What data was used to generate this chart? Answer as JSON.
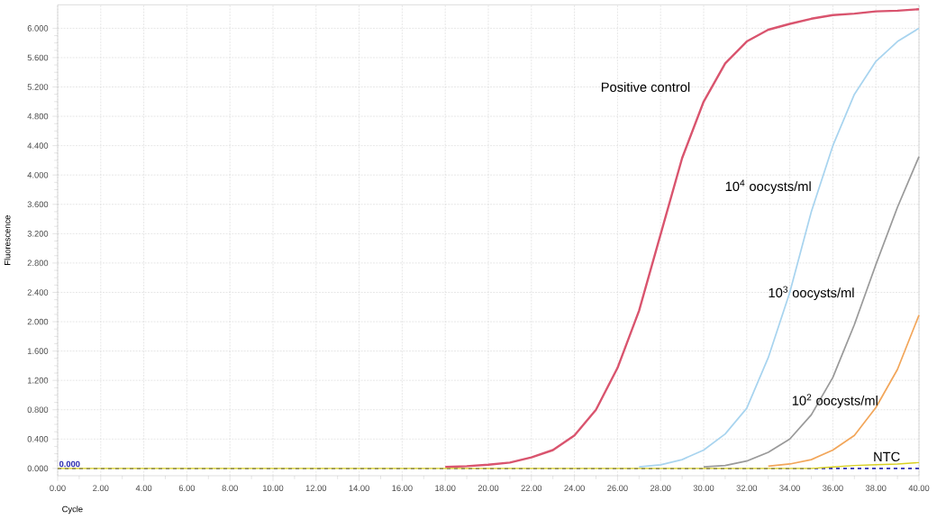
{
  "chart_data": {
    "type": "line",
    "xlabel": "Cycle",
    "ylabel": "Fluorescence",
    "x": [
      0,
      1,
      2,
      3,
      4,
      5,
      6,
      7,
      8,
      9,
      10,
      11,
      12,
      13,
      14,
      15,
      16,
      17,
      18,
      19,
      20,
      21,
      22,
      23,
      24,
      25,
      26,
      27,
      28,
      29,
      30,
      31,
      32,
      33,
      34,
      35,
      36,
      37,
      38,
      39,
      40
    ],
    "series": [
      {
        "name": "Positive control",
        "color": "#d9546e",
        "values": [
          null,
          null,
          null,
          null,
          null,
          null,
          null,
          null,
          null,
          null,
          null,
          null,
          null,
          null,
          null,
          null,
          null,
          null,
          0.02,
          0.03,
          0.05,
          0.08,
          0.15,
          0.25,
          0.45,
          0.8,
          1.37,
          2.15,
          3.19,
          4.23,
          5.0,
          5.52,
          5.82,
          5.98,
          6.06,
          6.13,
          6.18,
          6.2,
          6.23,
          6.24,
          6.26
        ]
      },
      {
        "name": "10$^{4}$ oocysts/ml",
        "color": "#a8d4ef",
        "values": [
          null,
          null,
          null,
          null,
          null,
          null,
          null,
          null,
          null,
          null,
          null,
          null,
          null,
          null,
          null,
          null,
          null,
          null,
          null,
          null,
          null,
          null,
          null,
          null,
          null,
          null,
          null,
          0.02,
          0.05,
          0.12,
          0.25,
          0.47,
          0.82,
          1.51,
          2.4,
          3.5,
          4.4,
          5.1,
          5.55,
          5.82,
          6.0
        ]
      },
      {
        "name": "10$^{3}$ oocysts/ml",
        "color": "#9a9a9a",
        "values": [
          null,
          null,
          null,
          null,
          null,
          null,
          null,
          null,
          null,
          null,
          null,
          null,
          null,
          null,
          null,
          null,
          null,
          null,
          null,
          null,
          null,
          null,
          null,
          null,
          null,
          null,
          null,
          null,
          null,
          null,
          0.02,
          0.04,
          0.1,
          0.22,
          0.4,
          0.73,
          1.24,
          1.96,
          2.78,
          3.56,
          4.25
        ]
      },
      {
        "name": "10$^{2}$ oocysts/ml",
        "color": "#f2a65a",
        "values": [
          null,
          null,
          null,
          null,
          null,
          null,
          null,
          null,
          null,
          null,
          null,
          null,
          null,
          null,
          null,
          null,
          null,
          null,
          null,
          null,
          null,
          null,
          null,
          null,
          null,
          null,
          null,
          null,
          null,
          null,
          null,
          null,
          null,
          0.03,
          0.06,
          0.12,
          0.25,
          0.45,
          0.83,
          1.35,
          2.09
        ]
      },
      {
        "name": "NTC",
        "color": "#d8d020",
        "values": [
          0,
          0,
          0,
          0,
          0,
          0,
          0,
          0,
          0,
          0,
          0,
          0,
          0,
          0,
          0,
          0,
          0,
          0,
          0,
          0,
          0,
          0,
          0,
          0,
          0,
          0,
          0,
          0,
          0,
          0,
          0,
          0,
          0,
          0,
          0,
          0,
          0.02,
          0.04,
          0.05,
          0.06,
          0.08
        ]
      }
    ],
    "xlim": [
      0,
      40
    ],
    "ylim": [
      -0.1,
      6.32
    ],
    "xticks": [
      {
        "value": 0,
        "label": "0.00"
      },
      {
        "value": 2,
        "label": "2.00"
      },
      {
        "value": 4,
        "label": "4.00"
      },
      {
        "value": 6,
        "label": "6.00"
      },
      {
        "value": 8,
        "label": "8.00"
      },
      {
        "value": 10,
        "label": "10.00"
      },
      {
        "value": 12,
        "label": "12.00"
      },
      {
        "value": 14,
        "label": "14.00"
      },
      {
        "value": 16,
        "label": "16.00"
      },
      {
        "value": 18,
        "label": "18.00"
      },
      {
        "value": 20,
        "label": "20.00"
      },
      {
        "value": 22,
        "label": "22.00"
      },
      {
        "value": 24,
        "label": "24.00"
      },
      {
        "value": 26,
        "label": "26.00"
      },
      {
        "value": 28,
        "label": "28.00"
      },
      {
        "value": 30,
        "label": "30.00"
      },
      {
        "value": 32,
        "label": "32.00"
      },
      {
        "value": 34,
        "label": "34.00"
      },
      {
        "value": 36,
        "label": "36.00"
      },
      {
        "value": 38,
        "label": "38.00"
      },
      {
        "value": 40,
        "label": "40.00"
      }
    ],
    "yticks": [
      {
        "value": 0,
        "label": "0.000"
      },
      {
        "value": 0.4,
        "label": "0.400"
      },
      {
        "value": 0.8,
        "label": "0.800"
      },
      {
        "value": 1.2,
        "label": "1.200"
      },
      {
        "value": 1.6,
        "label": "1.600"
      },
      {
        "value": 2,
        "label": "2.000"
      },
      {
        "value": 2.4,
        "label": "2.400"
      },
      {
        "value": 2.8,
        "label": "2.800"
      },
      {
        "value": 3.2,
        "label": "3.200"
      },
      {
        "value": 3.6,
        "label": "3.600"
      },
      {
        "value": 4,
        "label": "4.000"
      },
      {
        "value": 4.4,
        "label": "4.400"
      },
      {
        "value": 4.8,
        "label": "4.800"
      },
      {
        "value": 5.2,
        "label": "5.200"
      },
      {
        "value": 5.6,
        "label": "5.600"
      },
      {
        "value": 6,
        "label": "6.000"
      }
    ],
    "grid": true,
    "ref_lines": [
      {
        "axis": "y",
        "value": 0,
        "label": "0.000",
        "color": "#2b2bb0",
        "line_style": "dashed"
      }
    ]
  }
}
